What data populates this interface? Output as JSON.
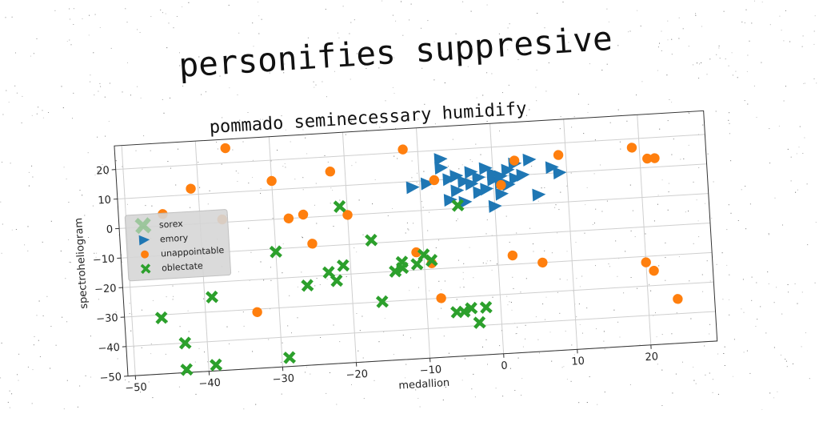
{
  "chart_data": {
    "type": "scatter",
    "title": "personifies suppresive",
    "subtitle": "pommado seminecessary humidify",
    "xlabel": "medallion",
    "ylabel": "spectroheliogram",
    "xlim": [
      -51,
      29
    ],
    "ylim": [
      -50,
      28
    ],
    "xticks": [
      -50,
      -40,
      -30,
      -20,
      -10,
      0,
      10,
      20
    ],
    "yticks": [
      -50,
      -40,
      -30,
      -20,
      -10,
      0,
      10,
      20
    ],
    "grid": true,
    "legend_position": "center-left",
    "series": [
      {
        "name": "sorex",
        "marker": "x",
        "color": "#2ca02c",
        "faded": true,
        "x": [],
        "y": []
      },
      {
        "name": "emory",
        "marker": "triangle-right",
        "color": "#1f77b4",
        "x": [
          -11,
          -9,
          -7,
          -6,
          -5,
          -4,
          -3,
          -3,
          -2,
          -1,
          -1,
          0,
          0,
          1,
          1,
          2,
          2,
          3,
          3,
          4,
          5,
          8,
          9,
          -5,
          -2,
          1,
          -6,
          -4,
          0,
          6,
          -7
        ],
        "y": [
          8,
          9,
          14,
          10,
          11,
          9,
          12,
          8,
          10,
          13,
          6,
          9,
          11,
          8,
          10,
          12,
          7,
          14,
          9,
          10,
          15,
          12,
          10,
          6,
          5,
          4,
          3,
          2,
          0,
          3,
          17
        ]
      },
      {
        "name": "unappointable",
        "marker": "circle",
        "color": "#ff7f0e",
        "x": [
          -36,
          -41,
          -45,
          -30,
          -37,
          -22,
          -28,
          -26,
          -25,
          -20,
          -12,
          -8,
          1,
          3,
          9,
          19,
          21,
          22,
          -11,
          -9,
          -33,
          -8,
          2,
          6,
          20,
          21,
          24
        ],
        "y": [
          25,
          12,
          4,
          13,
          1,
          15,
          0,
          1,
          -9,
          0,
          21,
          10,
          7,
          15,
          16,
          17,
          13,
          13,
          -14,
          -18,
          -31,
          -30,
          -17,
          -20,
          -22,
          -25,
          -35
        ]
      },
      {
        "name": "oblectate",
        "marker": "x",
        "color": "#2ca02c",
        "x": [
          -46,
          -43,
          -43,
          -39,
          -39,
          -30,
          -29,
          -26,
          -23,
          -22,
          -21,
          -16,
          -17,
          -14,
          -13,
          -13,
          -11,
          -10,
          -9,
          -6,
          -5,
          -4,
          -3,
          -2,
          -21,
          -5
        ],
        "y": [
          -31,
          -40,
          -49,
          -48,
          -25,
          -11,
          -47,
          -23,
          -19,
          -22,
          -17,
          -30,
          -9,
          -20,
          -19,
          -17,
          -18,
          -15,
          -17,
          -35,
          -35,
          -34,
          -39,
          -34,
          3,
          1
        ]
      }
    ]
  }
}
